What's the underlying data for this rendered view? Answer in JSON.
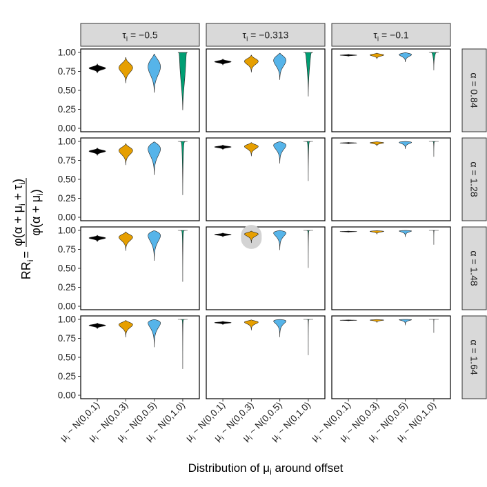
{
  "chart_data": {
    "type": "violin",
    "xlabel_parts": [
      "Distribution of ",
      "μ",
      "i",
      " around offset"
    ],
    "ylabel": {
      "lhs_main": "RR",
      "lhs_sub": "i",
      "equals": "=",
      "numerator": [
        "φ(α + μ",
        "i",
        " + τ",
        "i",
        ")"
      ],
      "denominator": [
        "φ(α + μ",
        "i",
        ")"
      ]
    },
    "column_strips": [
      {
        "prefix": "τ",
        "sub": "i",
        "text": " = −0.5"
      },
      {
        "prefix": "τ",
        "sub": "i",
        "text": " = −0.313"
      },
      {
        "prefix": "τ",
        "sub": "i",
        "text": " = −0.1"
      }
    ],
    "row_strips": [
      "α = 0.84",
      "α = 1.28",
      "α = 1.48",
      "α = 1.64"
    ],
    "categories": [
      {
        "mu": "μ",
        "sub": "i",
        "rest": " ~ N(0,0.1)"
      },
      {
        "mu": "μ",
        "sub": "i",
        "rest": " ~ N(0,0.3)"
      },
      {
        "mu": "μ",
        "sub": "i",
        "rest": " ~ N(0,0.5)"
      },
      {
        "mu": "μ",
        "sub": "i",
        "rest": " ~ N(0,1.0)"
      }
    ],
    "series_colors": [
      "#000000",
      "#E69F00",
      "#56B4E9",
      "#009E73"
    ],
    "yticks": [
      "0.00",
      "0.25",
      "0.50",
      "0.75",
      "1.00"
    ],
    "ylim": [
      0,
      1
    ],
    "tau": [
      -0.5,
      -0.313,
      -0.1
    ],
    "alpha": [
      0.84,
      1.28,
      1.48,
      1.64
    ],
    "sigma": [
      0.1,
      0.3,
      0.5,
      1.0
    ],
    "highlight": {
      "row": 2,
      "col": 1,
      "category": 1
    }
  }
}
